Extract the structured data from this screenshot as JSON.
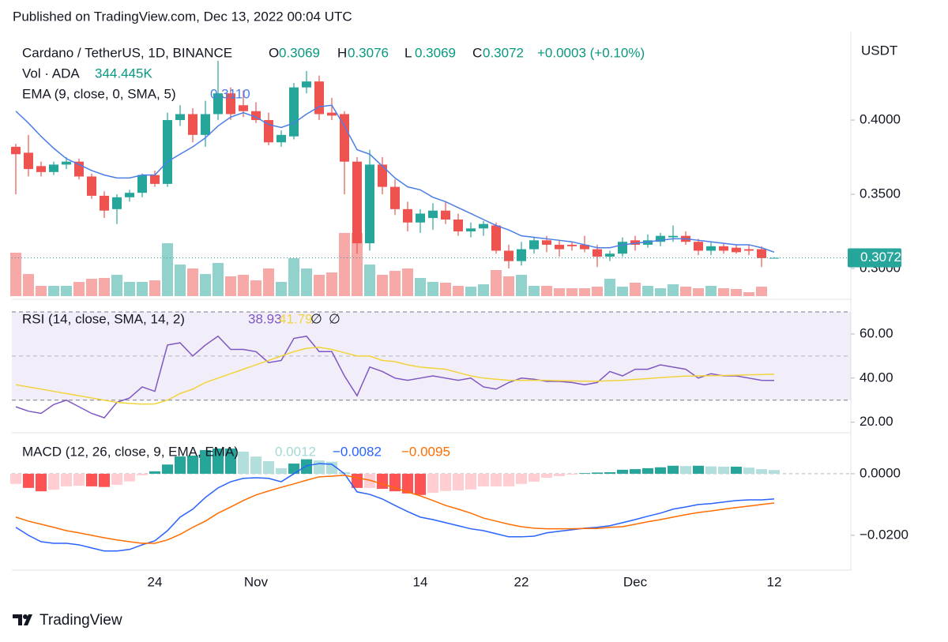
{
  "header": "Published on TradingView.com, Dec 13, 2022 00:04 UTC",
  "footer": "TradingView",
  "chart_data": [
    {
      "type": "candlestick",
      "title": "Cardano / TetherUS, 1D, BINANCE",
      "ohlc_prefixes": [
        "O",
        "H",
        "L",
        "C"
      ],
      "change_label": "+0.0003 (+0.10%)",
      "axis_label": "USDT",
      "categories": [
        null,
        null,
        null,
        null,
        null,
        null,
        null,
        null,
        null,
        null,
        null,
        "24",
        null,
        null,
        null,
        null,
        null,
        null,
        null,
        "Nov",
        null,
        null,
        null,
        null,
        null,
        null,
        null,
        null,
        null,
        null,
        null,
        null,
        "14",
        null,
        null,
        null,
        null,
        null,
        null,
        null,
        "22",
        null,
        null,
        null,
        null,
        null,
        null,
        null,
        null,
        "Dec",
        null,
        null,
        null,
        null,
        null,
        null,
        null,
        null,
        null,
        null,
        "12"
      ],
      "open": [
        0.382,
        0.378,
        0.369,
        0.365,
        0.37,
        0.372,
        0.362,
        0.349,
        0.34,
        0.348,
        0.351,
        0.363,
        0.357,
        0.4,
        0.404,
        0.39,
        0.404,
        0.418,
        0.41,
        0.406,
        0.4,
        0.385,
        0.389,
        0.422,
        0.426,
        0.405,
        0.404,
        0.372,
        0.317,
        0.37,
        0.355,
        0.34,
        0.331,
        0.334,
        0.339,
        0.333,
        0.325,
        0.327,
        0.329,
        0.312,
        0.305,
        0.313,
        0.319,
        0.316,
        0.316,
        0.316,
        0.313,
        0.308,
        0.31,
        0.319,
        0.316,
        0.318,
        0.321,
        0.322,
        0.318,
        0.312,
        0.315,
        0.314,
        0.313,
        0.313,
        0.3069
      ],
      "high": [
        0.384,
        0.39,
        0.372,
        0.372,
        0.375,
        0.374,
        0.364,
        0.352,
        0.35,
        0.353,
        0.364,
        0.366,
        0.405,
        0.41,
        0.408,
        0.413,
        0.44,
        0.422,
        0.42,
        0.412,
        0.405,
        0.393,
        0.425,
        0.433,
        0.43,
        0.415,
        0.406,
        0.375,
        0.38,
        0.375,
        0.36,
        0.345,
        0.34,
        0.344,
        0.345,
        0.337,
        0.331,
        0.332,
        0.331,
        0.316,
        0.318,
        0.321,
        0.322,
        0.319,
        0.318,
        0.322,
        0.316,
        0.312,
        0.321,
        0.322,
        0.323,
        0.324,
        0.329,
        0.325,
        0.32,
        0.318,
        0.317,
        0.316,
        0.316,
        0.315,
        0.3076
      ],
      "low": [
        0.35,
        0.362,
        0.362,
        0.363,
        0.367,
        0.36,
        0.347,
        0.334,
        0.33,
        0.345,
        0.348,
        0.355,
        0.355,
        0.396,
        0.385,
        0.382,
        0.4,
        0.4,
        0.402,
        0.398,
        0.383,
        0.382,
        0.387,
        0.418,
        0.4,
        0.4,
        0.35,
        0.31,
        0.312,
        0.35,
        0.336,
        0.325,
        0.324,
        0.326,
        0.33,
        0.322,
        0.321,
        0.322,
        0.31,
        0.3,
        0.302,
        0.31,
        0.311,
        0.308,
        0.312,
        0.311,
        0.301,
        0.305,
        0.308,
        0.312,
        0.314,
        0.315,
        0.318,
        0.316,
        0.309,
        0.309,
        0.31,
        0.31,
        0.309,
        0.301,
        0.3069
      ],
      "close": [
        0.377,
        0.367,
        0.365,
        0.37,
        0.372,
        0.362,
        0.349,
        0.339,
        0.348,
        0.351,
        0.363,
        0.357,
        0.4,
        0.404,
        0.39,
        0.404,
        0.418,
        0.404,
        0.406,
        0.4,
        0.385,
        0.39,
        0.422,
        0.426,
        0.404,
        0.403,
        0.372,
        0.317,
        0.37,
        0.355,
        0.34,
        0.331,
        0.337,
        0.339,
        0.333,
        0.325,
        0.327,
        0.33,
        0.312,
        0.305,
        0.313,
        0.319,
        0.316,
        0.313,
        0.315,
        0.313,
        0.308,
        0.31,
        0.318,
        0.316,
        0.319,
        0.322,
        0.322,
        0.318,
        0.312,
        0.315,
        0.312,
        0.311,
        0.312,
        0.307,
        0.3072
      ],
      "up_color": "#26a69a",
      "down_color": "#ef5350",
      "value_color": "#089981",
      "ylim": [
        0.2814,
        0.4596
      ],
      "yticks": [
        {
          "value": 0.4,
          "label": "0.4000"
        },
        {
          "value": 0.35,
          "label": "0.3500"
        },
        {
          "value": 0.3,
          "label": "0.3000"
        }
      ],
      "last_price_line": true,
      "volume": {
        "name": "Vol · ADA",
        "value_label": "344.445K",
        "ylim": [
          0,
          1500000000
        ],
        "up_color": "rgba(38,166,154,0.5)",
        "down_color": "rgba(239,83,80,0.5)",
        "values": [
          825000000,
          420000000,
          195000000,
          195000000,
          195000000,
          270000000,
          330000000,
          345000000,
          405000000,
          270000000,
          270000000,
          300000000,
          1005000000,
          600000000,
          525000000,
          420000000,
          630000000,
          375000000,
          405000000,
          300000000,
          525000000,
          270000000,
          720000000,
          525000000,
          405000000,
          450000000,
          1200000000,
          1200000000,
          600000000,
          405000000,
          480000000,
          525000000,
          345000000,
          270000000,
          255000000,
          195000000,
          180000000,
          225000000,
          495000000,
          375000000,
          405000000,
          195000000,
          195000000,
          150000000,
          150000000,
          150000000,
          180000000,
          330000000,
          180000000,
          255000000,
          195000000,
          150000000,
          225000000,
          180000000,
          150000000,
          195000000,
          150000000,
          135000000,
          75000000,
          180000000,
          344445
        ]
      },
      "ema": {
        "name": "EMA (9, close, 0, SMA, 5)",
        "value_label": "0.3110",
        "color": "#4a7ee6",
        "values": [
          0.406,
          0.398,
          0.389,
          0.381,
          0.374,
          0.37,
          0.366,
          0.363,
          0.361,
          0.361,
          0.363,
          0.363,
          0.372,
          0.377,
          0.382,
          0.388,
          0.396,
          0.402,
          0.405,
          0.402,
          0.397,
          0.395,
          0.398,
          0.404,
          0.409,
          0.41,
          0.396,
          0.38,
          0.377,
          0.369,
          0.361,
          0.355,
          0.353,
          0.348,
          0.345,
          0.341,
          0.337,
          0.333,
          0.329,
          0.326,
          0.322,
          0.321,
          0.32,
          0.319,
          0.318,
          0.316,
          0.314,
          0.314,
          0.316,
          0.317,
          0.318,
          0.319,
          0.32,
          0.32,
          0.319,
          0.318,
          0.317,
          0.316,
          0.316,
          0.314,
          0.311
        ]
      }
    },
    {
      "type": "line",
      "title": "RSI (14, close, SMA, 14, 2)",
      "extra_labels": [
        "∅",
        "∅"
      ],
      "band": [
        30,
        70
      ],
      "midline": 50,
      "band_color": "#7e57c2",
      "ylim": [
        16.3,
        74.3
      ],
      "yticks": [
        {
          "value": 60,
          "label": "60.00"
        },
        {
          "value": 40,
          "label": "40.00"
        },
        {
          "value": 20,
          "label": "20.00"
        }
      ],
      "series": [
        {
          "color": "#7e57c2",
          "values": [
            27,
            25,
            24,
            28,
            30,
            27,
            24,
            22,
            29,
            31,
            36,
            34,
            55,
            56,
            50,
            55,
            59,
            53,
            53,
            52,
            47,
            48,
            58,
            59,
            52,
            52,
            41,
            32,
            45,
            43,
            40,
            39,
            40,
            41,
            40,
            39,
            40,
            36,
            35,
            38,
            40,
            39.5,
            38.5,
            38.5,
            38,
            37,
            38,
            43,
            41,
            44,
            44,
            46,
            45,
            44,
            40,
            42,
            41,
            41,
            40,
            39,
            38.93
          ]
        },
        {
          "color": "#f2d33c",
          "values": [
            37,
            36,
            35,
            34,
            33,
            32,
            31,
            30,
            29,
            28.5,
            28.2,
            28.3,
            30,
            33,
            35,
            38,
            40,
            42,
            44,
            46,
            48,
            50,
            52,
            53.5,
            54,
            53,
            51.5,
            50,
            50,
            48,
            47.5,
            46,
            45,
            44.5,
            44,
            42.5,
            41,
            40,
            39.5,
            39,
            39,
            39,
            39,
            38.8,
            38.7,
            38.6,
            38.6,
            38.8,
            39,
            39.4,
            39.8,
            40.2,
            40.6,
            40.9,
            41,
            41.1,
            41.2,
            41.3,
            41.5,
            41.6,
            41.79
          ]
        }
      ]
    },
    {
      "type": "macd",
      "title": "MACD (12, 26, close, 9, EMA, EMA)",
      "ylim": [
        -0.0303,
        0.0123
      ],
      "yticks": [
        {
          "value": 0,
          "label": "0.0000"
        },
        {
          "value": -0.02,
          "label": "−0.0200"
        }
      ],
      "histogram": {
        "colors": [
          "#26a69a",
          "#b2dfdb",
          "#ffcdd2",
          "#ff5252"
        ],
        "legend_color": "#a5d9d3",
        "values": [
          -0.0033,
          -0.0046,
          -0.0057,
          -0.0052,
          -0.0041,
          -0.0039,
          -0.0041,
          -0.0043,
          -0.0036,
          -0.0025,
          -0.0005,
          0.0008,
          0.003,
          0.0056,
          0.0059,
          0.0077,
          0.0082,
          0.0082,
          0.0072,
          0.0056,
          0.0041,
          0.0018,
          0.0033,
          0.0047,
          0.0043,
          0.0039,
          0.0005,
          -0.0046,
          -0.0046,
          -0.0049,
          -0.0057,
          -0.0064,
          -0.0069,
          -0.0062,
          -0.0056,
          -0.0054,
          -0.0051,
          -0.0041,
          -0.0041,
          -0.0041,
          -0.0033,
          -0.0026,
          -0.0013,
          -0.0008,
          -0.0003,
          0.0002,
          0.0004,
          0.0005,
          0.0013,
          0.0015,
          0.0018,
          0.0021,
          0.0026,
          0.0025,
          0.0026,
          0.0024,
          0.0023,
          0.0023,
          0.002,
          0.0015,
          0.0012
        ]
      },
      "series": [
        {
          "color": "#2962ff",
          "value_label": "−0.0082",
          "values": [
            -0.0174,
            -0.02,
            -0.0221,
            -0.0226,
            -0.0226,
            -0.0231,
            -0.0241,
            -0.0251,
            -0.0251,
            -0.0246,
            -0.0231,
            -0.0218,
            -0.0185,
            -0.0141,
            -0.0115,
            -0.0077,
            -0.0046,
            -0.0026,
            -0.0015,
            -0.0013,
            -0.0015,
            -0.0026,
            0,
            0.0026,
            0.0033,
            0.0031,
            0,
            -0.0059,
            -0.0067,
            -0.0082,
            -0.0103,
            -0.0123,
            -0.0141,
            -0.0149,
            -0.0159,
            -0.0169,
            -0.0179,
            -0.0185,
            -0.0195,
            -0.0205,
            -0.0205,
            -0.0203,
            -0.0192,
            -0.0187,
            -0.0182,
            -0.0177,
            -0.0174,
            -0.0169,
            -0.0159,
            -0.0149,
            -0.0138,
            -0.0128,
            -0.0115,
            -0.0108,
            -0.01,
            -0.0097,
            -0.0092,
            -0.0087,
            -0.0085,
            -0.0085,
            -0.0082
          ]
        },
        {
          "color": "#ff6d00",
          "value_label": "−0.0095",
          "values": [
            -0.0141,
            -0.0154,
            -0.0164,
            -0.0174,
            -0.0185,
            -0.0192,
            -0.02,
            -0.0208,
            -0.0215,
            -0.0221,
            -0.0226,
            -0.0226,
            -0.0215,
            -0.0197,
            -0.0174,
            -0.0154,
            -0.0128,
            -0.0108,
            -0.0087,
            -0.0069,
            -0.0056,
            -0.0044,
            -0.0033,
            -0.0021,
            -0.001,
            -0.0008,
            -0.0005,
            -0.0013,
            -0.0021,
            -0.0033,
            -0.0046,
            -0.0059,
            -0.0072,
            -0.0087,
            -0.0103,
            -0.0115,
            -0.0128,
            -0.0144,
            -0.0154,
            -0.0164,
            -0.0172,
            -0.0177,
            -0.0179,
            -0.0179,
            -0.0179,
            -0.0178,
            -0.0178,
            -0.0174,
            -0.0172,
            -0.0164,
            -0.0156,
            -0.0149,
            -0.0141,
            -0.0133,
            -0.0126,
            -0.0121,
            -0.0115,
            -0.011,
            -0.0105,
            -0.01,
            -0.0095
          ]
        }
      ]
    }
  ]
}
